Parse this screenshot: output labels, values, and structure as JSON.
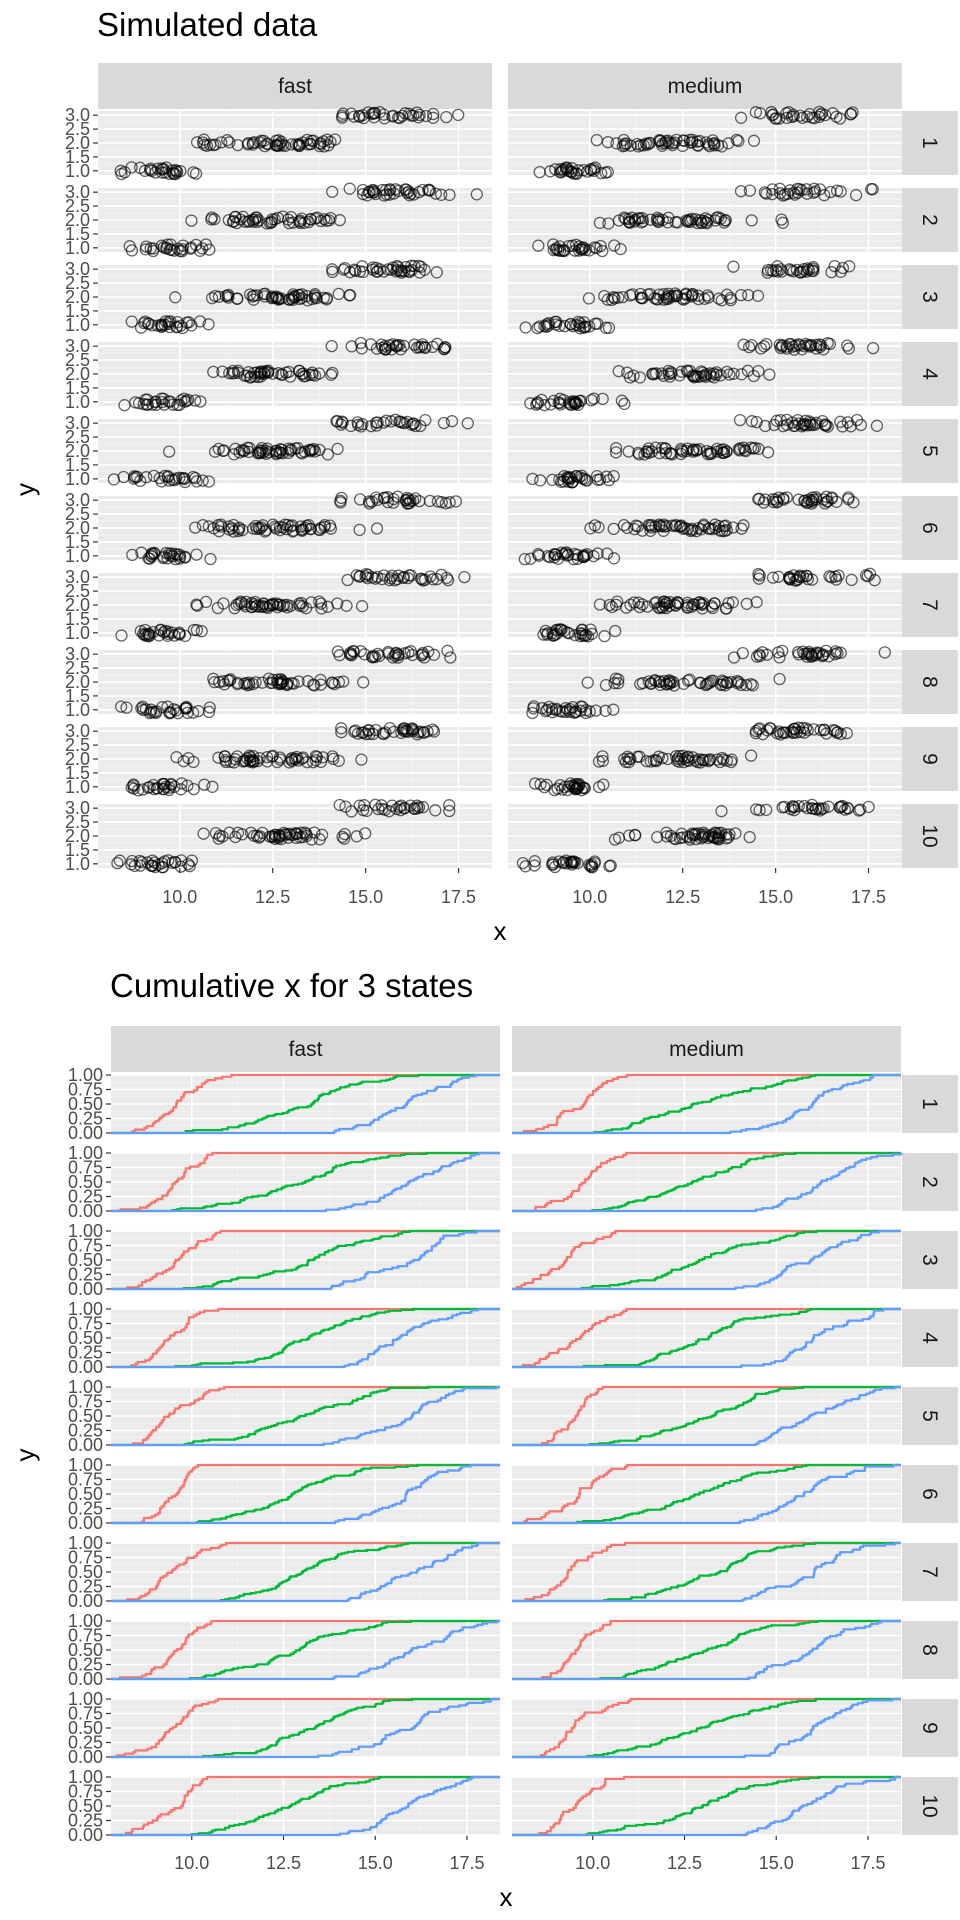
{
  "chart_data": [
    {
      "type": "scatter",
      "title": "Simulated data",
      "xlabel": "x",
      "ylabel": "y",
      "facet_cols": [
        "fast",
        "medium"
      ],
      "facet_rows": [
        "1",
        "2",
        "3",
        "4",
        "5",
        "6",
        "7",
        "8",
        "9",
        "10"
      ],
      "xlim": [
        7.8,
        18.4
      ],
      "ylim": [
        0.85,
        3.15
      ],
      "x_ticks": [
        "10.0",
        "12.5",
        "15.0",
        "17.5"
      ],
      "y_ticks": [
        "1.0",
        "1.5",
        "2.0",
        "2.5",
        "3.0"
      ],
      "marker": "open-circle",
      "point_color": "#000000",
      "point_alpha": 0.6,
      "grid": true,
      "panel_background": "#ebebeb",
      "strip_background": "#d9d9d9",
      "levels": [
        {
          "y": 1,
          "range": [
            8.1,
            11.0
          ]
        },
        {
          "y": 2,
          "range": [
            9.5,
            15.5
          ]
        },
        {
          "y": 3,
          "range": [
            13.5,
            18.0
          ]
        }
      ]
    },
    {
      "type": "line",
      "title": "Cumulative x for 3 states",
      "xlabel": "x",
      "ylabel": "y",
      "facet_cols": [
        "fast",
        "medium"
      ],
      "facet_rows": [
        "1",
        "2",
        "3",
        "4",
        "5",
        "6",
        "7",
        "8",
        "9",
        "10"
      ],
      "xlim": [
        7.8,
        18.4
      ],
      "ylim": [
        0,
        1
      ],
      "x_ticks": [
        "10.0",
        "12.5",
        "15.0",
        "17.5"
      ],
      "y_ticks": [
        "0.00",
        "0.25",
        "0.50",
        "0.75",
        "1.00"
      ],
      "step": true,
      "grid": true,
      "panel_background": "#ebebeb",
      "strip_background": "#d9d9d9",
      "series": [
        {
          "color": "#f8766d",
          "range": [
            8.1,
            11.0
          ]
        },
        {
          "color": "#00ba38",
          "range": [
            9.5,
            16.5
          ]
        },
        {
          "color": "#619cff",
          "range": [
            13.5,
            18.4
          ]
        }
      ]
    }
  ]
}
